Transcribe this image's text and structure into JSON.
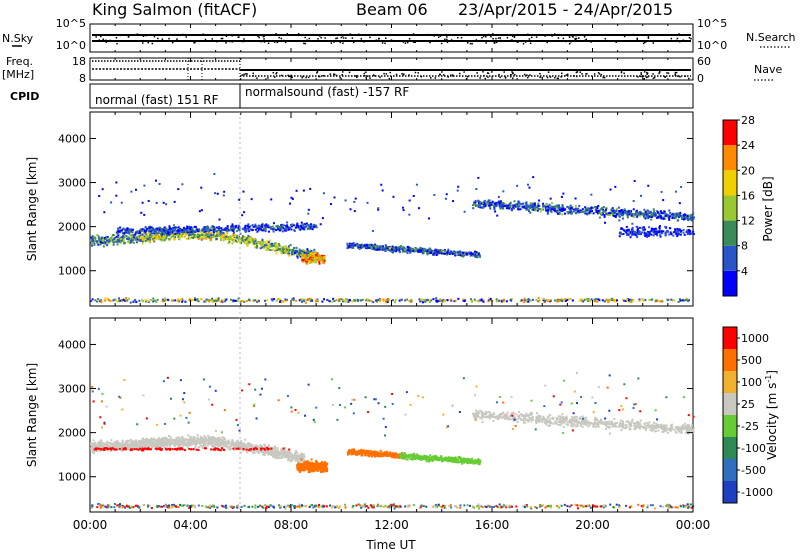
{
  "header": {
    "station": "King Salmon (fitACF)",
    "beam": "Beam 06",
    "date_range": "23/Apr/2015 - 24/Apr/2015"
  },
  "chart_data": [
    {
      "type": "line",
      "name_left": "N.Sky",
      "name_right": "N.Search",
      "left_ticks": [
        "10^5",
        "10^0"
      ],
      "right_ticks": [
        "10^5",
        "10^0"
      ]
    },
    {
      "type": "line",
      "name_left": "Freq.",
      "unit_left": "[MHz]",
      "name_right": "Nave",
      "left_ticks": [
        "18",
        "8"
      ],
      "right_ticks": [
        "60",
        "0"
      ]
    },
    {
      "type": "table",
      "name": "CPID",
      "segments": [
        {
          "start_hour": 0,
          "end_hour": 6,
          "label": "normal (fast) 151 RF"
        },
        {
          "start_hour": 6,
          "end_hour": 24,
          "label": "normalsound (fast) -157 RF"
        }
      ]
    },
    {
      "type": "heatmap",
      "ylabel": "Slant Range [km]",
      "yticks": [
        1000,
        2000,
        3000,
        4000
      ],
      "ylim": [
        200,
        4600
      ],
      "xlim": [
        0,
        24
      ],
      "colorbar": {
        "label": "Power [dB]",
        "ticks": [
          4,
          8,
          12,
          16,
          20,
          24,
          28
        ],
        "colors": [
          "#0000ff",
          "#2a55c8",
          "#3a8a5a",
          "#9ac832",
          "#f0d000",
          "#ff8a00",
          "#ff0000"
        ]
      }
    },
    {
      "type": "heatmap",
      "ylabel": "Slant Range [km]",
      "yticks": [
        1000,
        2000,
        3000,
        4000
      ],
      "ylim": [
        200,
        4600
      ],
      "xlim": [
        0,
        24
      ],
      "xlabel": "Time UT",
      "xticks": [
        "00:00",
        "04:00",
        "08:00",
        "12:00",
        "16:00",
        "20:00",
        "00:00"
      ],
      "colorbar": {
        "label": "Velocity",
        "unit": "[m s",
        "unit_exp": "-1",
        "unit_close": "]",
        "ticks": [
          "1000",
          "500",
          "100",
          "25",
          "-25",
          "-100",
          "-500",
          "-1000"
        ],
        "colors": [
          "#1e3fbf",
          "#2e6fbf",
          "#2e8a55",
          "#66cc33",
          "#c8c8c0",
          "#f0b030",
          "#ff7000",
          "#ff0000"
        ]
      }
    }
  ]
}
